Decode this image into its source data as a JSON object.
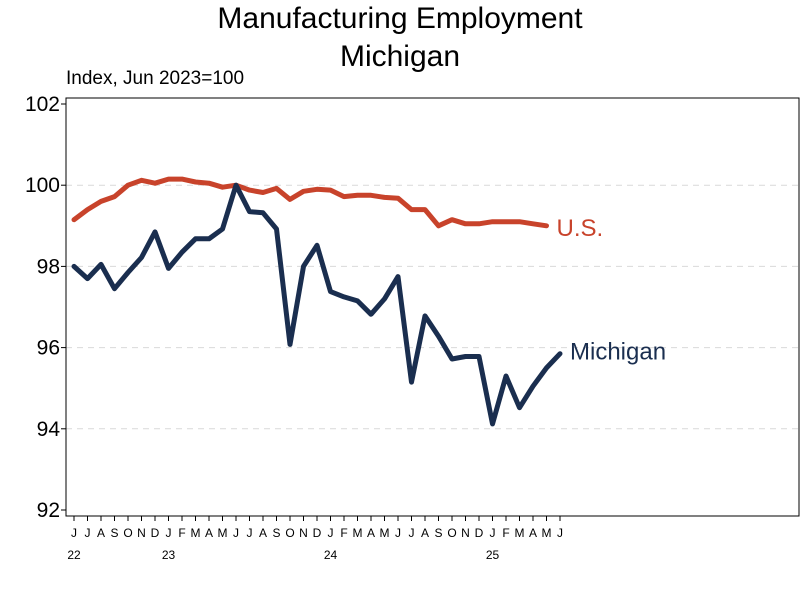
{
  "chart_data": {
    "type": "line",
    "title": "Manufacturing Employment",
    "subtitle": "Michigan",
    "ylabel": "Index, Jun 2023=100",
    "ylim": [
      92,
      102
    ],
    "yticks": [
      92,
      94,
      96,
      98,
      100,
      102
    ],
    "grid": "horizontal dashed",
    "x_month_labels": [
      "J",
      "J",
      "A",
      "S",
      "O",
      "N",
      "D",
      "J",
      "F",
      "M",
      "A",
      "M",
      "J",
      "J",
      "A",
      "S",
      "O",
      "N",
      "D",
      "J",
      "F",
      "M",
      "A",
      "M",
      "J",
      "J",
      "A",
      "S",
      "O",
      "N",
      "D",
      "J",
      "F",
      "M",
      "A",
      "M",
      "J"
    ],
    "x_year_labels": [
      {
        "index": 0,
        "label": "22"
      },
      {
        "index": 7,
        "label": "23"
      },
      {
        "index": 19,
        "label": "24"
      },
      {
        "index": 31,
        "label": "25"
      }
    ],
    "series": [
      {
        "name": "U.S.",
        "color": "#c8432b",
        "values": [
          99.15,
          99.4,
          99.6,
          99.72,
          100.0,
          100.12,
          100.05,
          100.15,
          100.15,
          100.08,
          100.05,
          99.95,
          100.0,
          99.88,
          99.82,
          99.92,
          99.65,
          99.85,
          99.9,
          99.88,
          99.72,
          99.75,
          99.75,
          99.7,
          99.68,
          99.4,
          99.4,
          99.0,
          99.15,
          99.05,
          99.05,
          99.1,
          99.1,
          99.1,
          99.05,
          99.0
        ]
      },
      {
        "name": "Michigan",
        "color": "#1a2e4f",
        "values": [
          98.0,
          97.7,
          98.05,
          97.45,
          97.85,
          98.22,
          98.85,
          97.95,
          98.35,
          98.68,
          98.68,
          98.92,
          100.0,
          99.35,
          99.32,
          98.92,
          96.08,
          98.0,
          98.52,
          97.38,
          97.25,
          97.15,
          96.82,
          97.2,
          97.75,
          95.15,
          96.78,
          96.28,
          95.72,
          95.78,
          95.78,
          94.12,
          95.3,
          94.52,
          95.05,
          95.5,
          95.85
        ]
      }
    ]
  }
}
